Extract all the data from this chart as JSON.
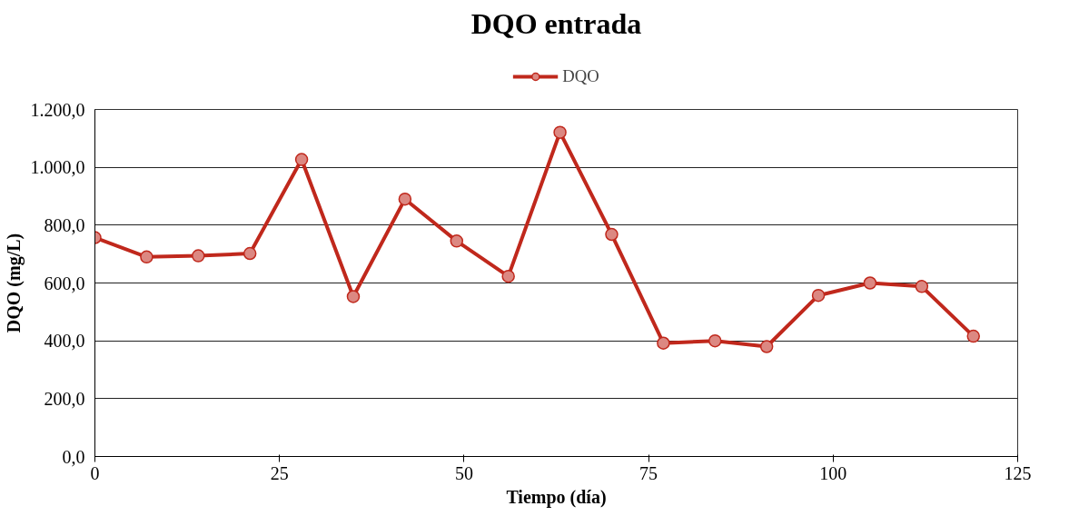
{
  "chart_data": {
    "type": "line",
    "title": "DQO entrada",
    "xlabel": "Tiempo (día)",
    "ylabel": "DQO (mg/L)",
    "x": [
      0,
      7,
      14,
      21,
      28,
      35,
      42,
      49,
      56,
      63,
      70,
      77,
      84,
      91,
      98,
      105,
      112,
      119
    ],
    "series": [
      {
        "name": "DQO",
        "color": "#c0281c",
        "values": [
          757,
          690,
          694,
          702,
          1027,
          553,
          890,
          745,
          623,
          1121,
          768,
          392,
          400,
          380,
          557,
          600,
          588,
          416
        ]
      }
    ],
    "xlim": [
      0,
      125
    ],
    "xticks": [
      0,
      25,
      50,
      75,
      100,
      125
    ],
    "ylim": [
      0,
      1200
    ],
    "yticks": [
      {
        "value": 0,
        "label": "0,0"
      },
      {
        "value": 200,
        "label": "200,0"
      },
      {
        "value": 400,
        "label": "400,0"
      },
      {
        "value": 600,
        "label": "600,0"
      },
      {
        "value": 800,
        "label": "800,0"
      },
      {
        "value": 1000,
        "label": "1.000,0"
      },
      {
        "value": 1200,
        "label": "1.200,0"
      }
    ],
    "grid": "y",
    "legend": "top",
    "marker": "circle",
    "line_style": "solid"
  }
}
